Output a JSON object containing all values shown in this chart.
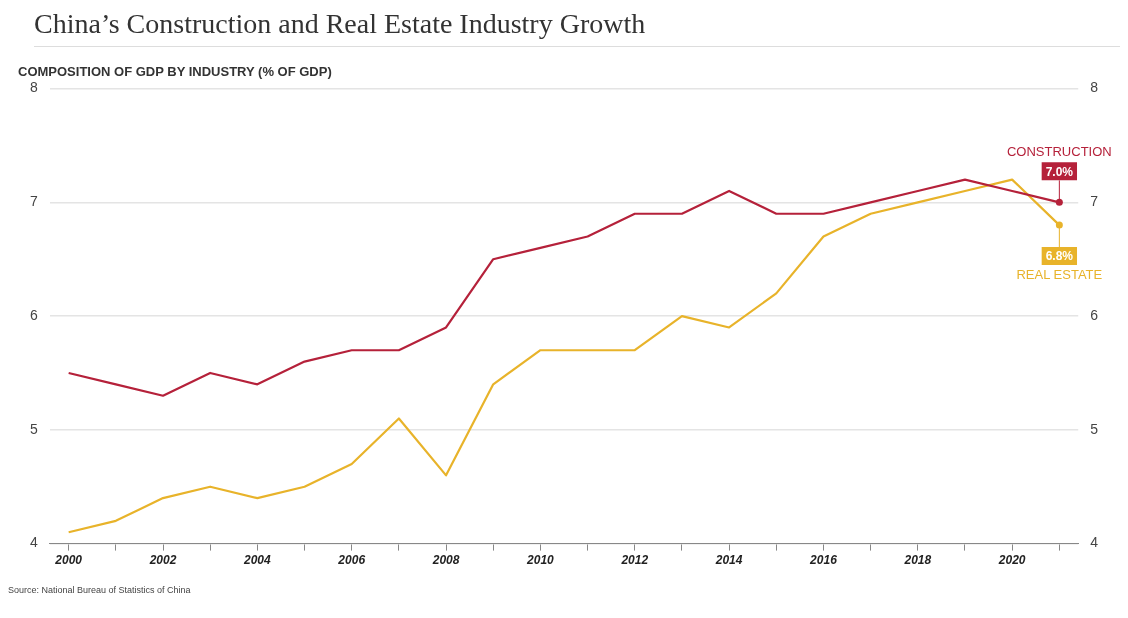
{
  "chart_data": {
    "type": "line",
    "title": "China’s Construction and Real Estate Industry Growth",
    "subtitle": "COMPOSITION OF GDP BY INDUSTRY (% OF GDP)",
    "x": [
      2000,
      2001,
      2002,
      2003,
      2004,
      2005,
      2006,
      2007,
      2008,
      2009,
      2010,
      2011,
      2012,
      2013,
      2014,
      2015,
      2016,
      2017,
      2018,
      2019,
      2020,
      2021
    ],
    "series": [
      {
        "name": "CONSTRUCTION",
        "color": "#b5213a",
        "values": [
          5.5,
          5.4,
          5.3,
          5.5,
          5.4,
          5.6,
          5.7,
          5.7,
          5.9,
          6.5,
          6.6,
          6.7,
          6.9,
          6.9,
          7.1,
          6.9,
          6.9,
          7.0,
          7.1,
          7.2,
          7.1,
          7.0
        ],
        "value_labels": [
          null,
          null,
          null,
          null,
          null,
          null,
          null,
          null,
          null,
          null,
          null,
          null,
          null,
          null,
          null,
          null,
          null,
          null,
          null,
          null,
          null,
          "7.0%"
        ]
      },
      {
        "name": "REAL ESTATE",
        "color": "#e8b32a",
        "values": [
          4.1,
          4.2,
          4.4,
          4.5,
          4.4,
          4.5,
          4.7,
          5.1,
          4.6,
          5.4,
          5.7,
          5.7,
          5.7,
          6.0,
          5.9,
          6.2,
          6.7,
          6.9,
          7.0,
          7.1,
          7.2,
          6.8
        ],
        "value_labels": [
          null,
          null,
          null,
          null,
          null,
          null,
          null,
          null,
          null,
          null,
          null,
          null,
          null,
          null,
          null,
          null,
          null,
          null,
          null,
          null,
          null,
          "6.8%"
        ]
      }
    ],
    "xlim": [
      1999.6,
      2021.4
    ],
    "xticks": [
      2000,
      {
        "value": 2001,
        "label": null
      },
      2002,
      {
        "value": 2003,
        "label": null
      },
      2004,
      {
        "value": 2005,
        "label": null
      },
      2006,
      {
        "value": 2007,
        "label": null
      },
      2008,
      {
        "value": 2009,
        "label": null
      },
      2010,
      {
        "value": 2011,
        "label": null
      },
      2012,
      {
        "value": 2013,
        "label": null
      },
      2014,
      {
        "value": 2015,
        "label": null
      },
      2016,
      {
        "value": 2017,
        "label": null
      },
      2018,
      {
        "value": 2019,
        "label": null
      },
      2020,
      {
        "value": 2021,
        "label": null
      }
    ],
    "ylim": [
      4,
      8
    ],
    "yticks": [
      4,
      5,
      6,
      7,
      8
    ],
    "y2lim": [
      4,
      8
    ],
    "y2ticks": [
      4,
      5,
      6,
      7,
      8
    ],
    "grid": "y",
    "marker": "none",
    "line_style": "solid",
    "legend": "right",
    "annotations": [
      "Source: National Bureau of Statistics of China"
    ]
  }
}
